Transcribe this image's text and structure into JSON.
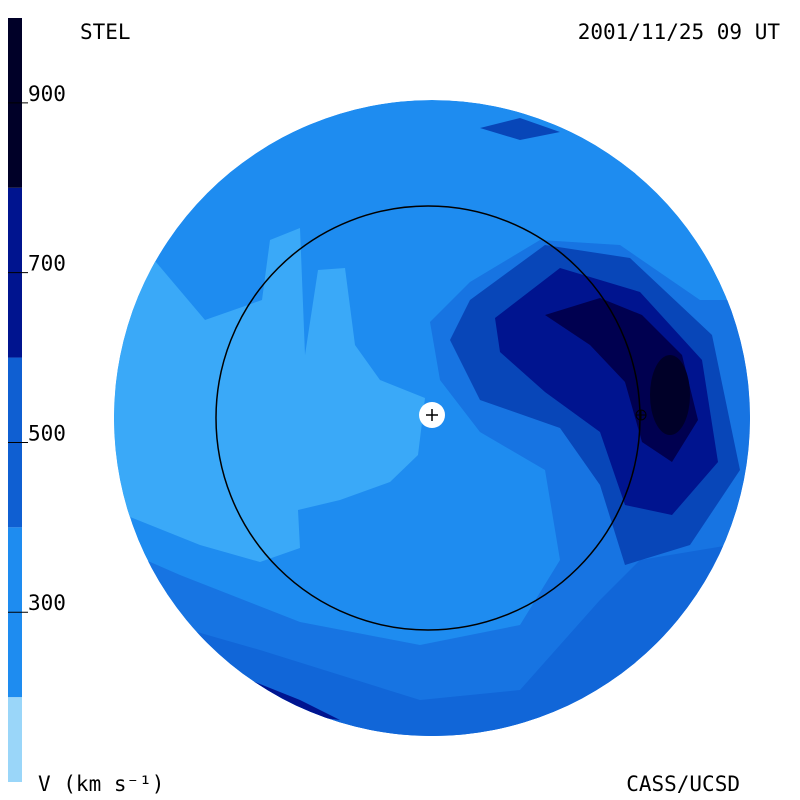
{
  "header": {
    "left": "STEL",
    "right": "2001/11/25 09 UT"
  },
  "colorbar": {
    "label": "V (km s⁻¹)",
    "lim": [
      100,
      1000
    ],
    "ticks": [
      900,
      700,
      500,
      300
    ],
    "bands": [
      {
        "from": 100,
        "to": 200,
        "color": "#9ad6f9"
      },
      {
        "from": 200,
        "to": 400,
        "color": "#1e8cf0"
      },
      {
        "from": 400,
        "to": 600,
        "color": "#0f5fd2"
      },
      {
        "from": 600,
        "to": 800,
        "color": "#00148f"
      },
      {
        "from": 800,
        "to": 1000,
        "color": "#000028"
      }
    ]
  },
  "footer": "CASS/UCSD"
}
